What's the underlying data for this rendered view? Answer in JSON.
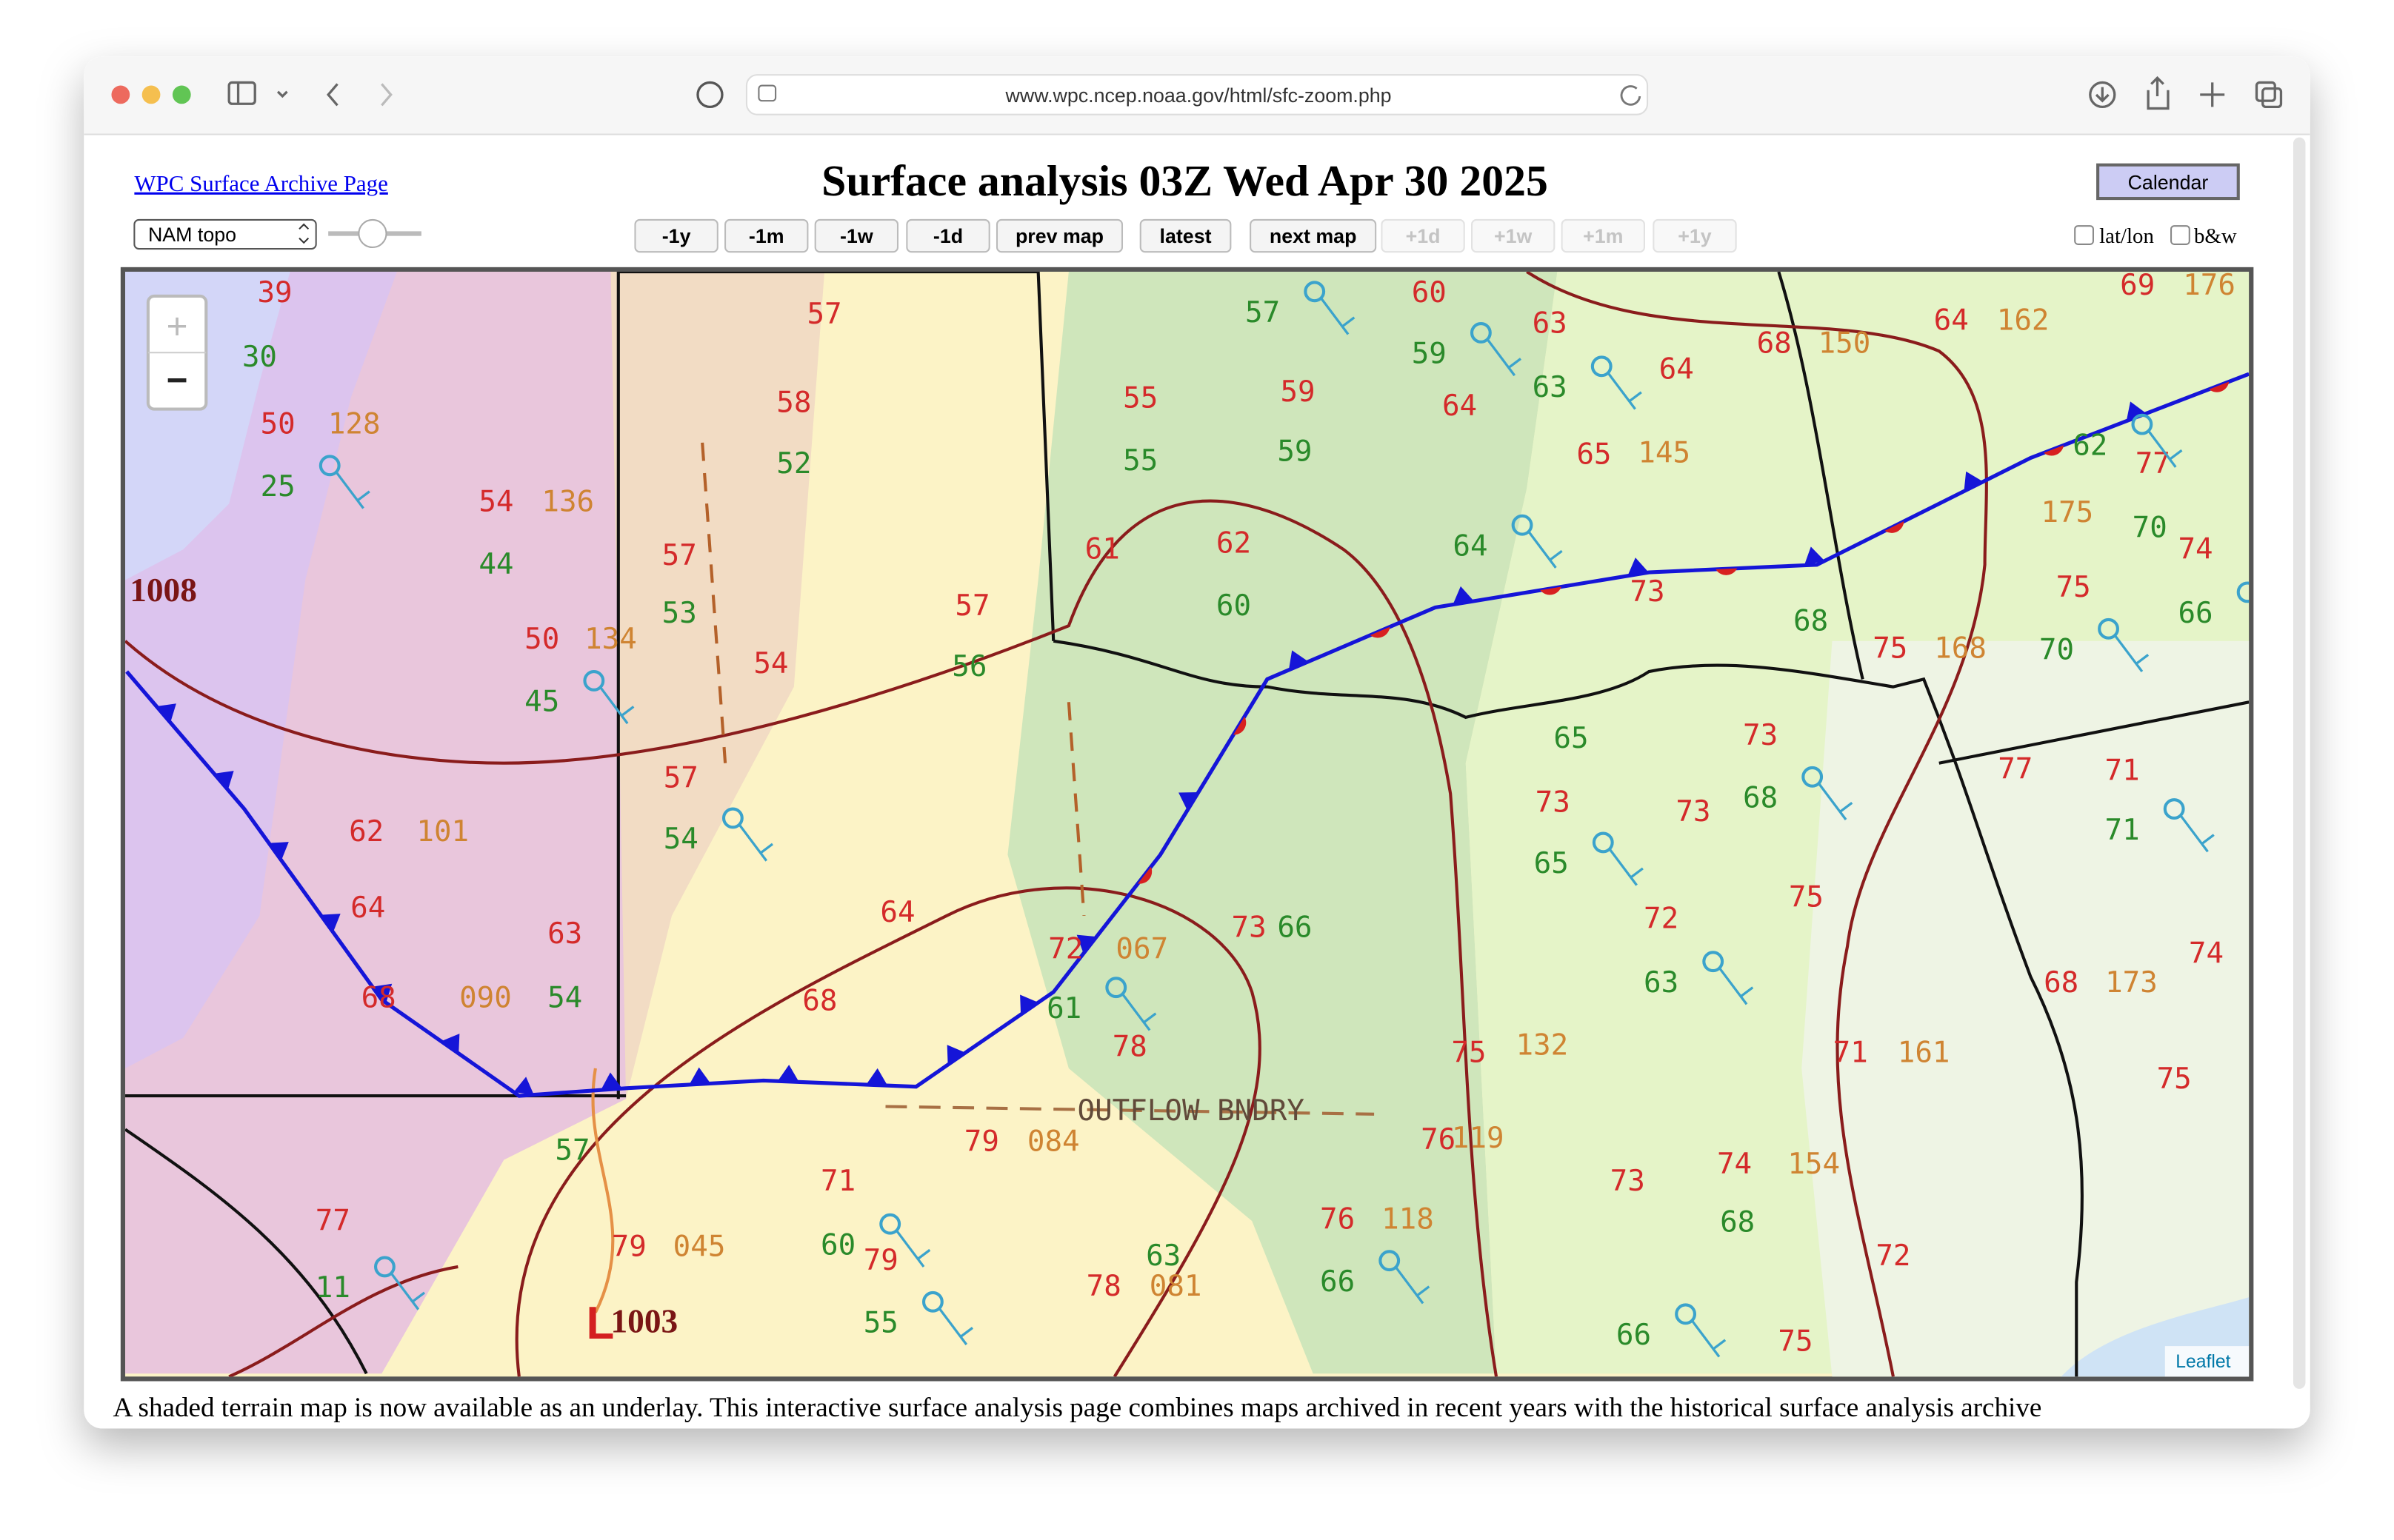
{
  "browser": {
    "url": "www.wpc.ncep.noaa.gov/html/sfc-zoom.php"
  },
  "header": {
    "archive_link": "WPC Surface Archive Page",
    "title": "Surface analysis 03Z Wed Apr 30 2025",
    "calendar": "Calendar"
  },
  "controls": {
    "underlay": "NAM topo",
    "buttons": [
      "-1y",
      "-1m",
      "-1w",
      "-1d",
      "prev map",
      "latest",
      "next map"
    ],
    "disabled_buttons": [
      "+1d",
      "+1w",
      "+1m",
      "+1y"
    ],
    "checkboxes": [
      "lat/lon",
      "b&w"
    ]
  },
  "map": {
    "zoom_in": "+",
    "zoom_out": "−",
    "attribution": "Leaflet",
    "boundary_label": "OUTFLOW BNDRY",
    "isobars": [
      "1008",
      "1003"
    ],
    "low": "L",
    "stations": [
      {
        "text": "39",
        "kind": "temp"
      },
      {
        "text": "30",
        "kind": "dew"
      },
      {
        "text": "50",
        "kind": "temp"
      },
      {
        "text": "128",
        "kind": "pres"
      },
      {
        "text": "25",
        "kind": "dew"
      },
      {
        "text": "54",
        "kind": "temp"
      },
      {
        "text": "136",
        "kind": "pres"
      },
      {
        "text": "44",
        "kind": "dew"
      },
      {
        "text": "50",
        "kind": "temp"
      },
      {
        "text": "134",
        "kind": "pres"
      },
      {
        "text": "45",
        "kind": "dew"
      },
      {
        "text": "57",
        "kind": "temp"
      },
      {
        "text": "58",
        "kind": "temp"
      },
      {
        "text": "52",
        "kind": "dew"
      },
      {
        "text": "57",
        "kind": "temp"
      },
      {
        "text": "53",
        "kind": "dew"
      },
      {
        "text": "54",
        "kind": "temp"
      },
      {
        "text": "57",
        "kind": "temp"
      },
      {
        "text": "54",
        "kind": "dew"
      },
      {
        "text": "62",
        "kind": "temp"
      },
      {
        "text": "101",
        "kind": "pres"
      },
      {
        "text": "64",
        "kind": "temp"
      },
      {
        "text": "63",
        "kind": "temp"
      },
      {
        "text": "68",
        "kind": "temp"
      },
      {
        "text": "090",
        "kind": "pres"
      },
      {
        "text": "54",
        "kind": "dew"
      },
      {
        "text": "64",
        "kind": "temp"
      },
      {
        "text": "68",
        "kind": "temp"
      },
      {
        "text": "55",
        "kind": "temp"
      },
      {
        "text": "55",
        "kind": "dew"
      },
      {
        "text": "57",
        "kind": "temp"
      },
      {
        "text": "56",
        "kind": "dew"
      },
      {
        "text": "62",
        "kind": "temp"
      },
      {
        "text": "60",
        "kind": "dew"
      },
      {
        "text": "59",
        "kind": "temp"
      },
      {
        "text": "59",
        "kind": "dew"
      },
      {
        "text": "59",
        "kind": "dew"
      },
      {
        "text": "64",
        "kind": "temp"
      },
      {
        "text": "64",
        "kind": "dew"
      },
      {
        "text": "63",
        "kind": "temp"
      },
      {
        "text": "63",
        "kind": "dew"
      },
      {
        "text": "65",
        "kind": "temp"
      },
      {
        "text": "145",
        "kind": "pres"
      },
      {
        "text": "64",
        "kind": "temp"
      },
      {
        "text": "68",
        "kind": "temp"
      },
      {
        "text": "150",
        "kind": "pres"
      },
      {
        "text": "73",
        "kind": "temp"
      },
      {
        "text": "68",
        "kind": "dew"
      },
      {
        "text": "75",
        "kind": "temp"
      },
      {
        "text": "168",
        "kind": "pres"
      },
      {
        "text": "70",
        "kind": "dew"
      },
      {
        "text": "73",
        "kind": "temp"
      },
      {
        "text": "68",
        "kind": "dew"
      },
      {
        "text": "65",
        "kind": "dew"
      },
      {
        "text": "73",
        "kind": "temp"
      },
      {
        "text": "73",
        "kind": "temp"
      },
      {
        "text": "65",
        "kind": "dew"
      },
      {
        "text": "72",
        "kind": "temp"
      },
      {
        "text": "63",
        "kind": "dew"
      },
      {
        "text": "75",
        "kind": "temp"
      },
      {
        "text": "77",
        "kind": "temp"
      },
      {
        "text": "71",
        "kind": "temp"
      },
      {
        "text": "71",
        "kind": "dew"
      },
      {
        "text": "68",
        "kind": "temp"
      },
      {
        "text": "173",
        "kind": "pres"
      },
      {
        "text": "74",
        "kind": "temp"
      },
      {
        "text": "71",
        "kind": "temp"
      },
      {
        "text": "161",
        "kind": "pres"
      },
      {
        "text": "75",
        "kind": "temp"
      },
      {
        "text": "74",
        "kind": "temp"
      },
      {
        "text": "154",
        "kind": "pres"
      },
      {
        "text": "68",
        "kind": "dew"
      },
      {
        "text": "72",
        "kind": "temp"
      },
      {
        "text": "75",
        "kind": "temp"
      },
      {
        "text": "66",
        "kind": "dew"
      },
      {
        "text": "73",
        "kind": "temp"
      },
      {
        "text": "75",
        "kind": "temp"
      },
      {
        "text": "132",
        "kind": "pres"
      },
      {
        "text": "76",
        "kind": "temp"
      },
      {
        "text": "119",
        "kind": "pres"
      },
      {
        "text": "76",
        "kind": "temp"
      },
      {
        "text": "118",
        "kind": "pres"
      },
      {
        "text": "66",
        "kind": "dew"
      },
      {
        "text": "63",
        "kind": "dew"
      },
      {
        "text": "78",
        "kind": "temp"
      },
      {
        "text": "081",
        "kind": "pres"
      },
      {
        "text": "78",
        "kind": "temp"
      },
      {
        "text": "79",
        "kind": "temp"
      },
      {
        "text": "084",
        "kind": "pres"
      },
      {
        "text": "71",
        "kind": "temp"
      },
      {
        "text": "60",
        "kind": "dew"
      },
      {
        "text": "79",
        "kind": "temp"
      },
      {
        "text": "55",
        "kind": "dew"
      },
      {
        "text": "77",
        "kind": "temp"
      },
      {
        "text": "11",
        "kind": "dew"
      },
      {
        "text": "79",
        "kind": "temp"
      },
      {
        "text": "045",
        "kind": "pres"
      },
      {
        "text": "57",
        "kind": "dew"
      },
      {
        "text": "73",
        "kind": "temp"
      },
      {
        "text": "66",
        "kind": "dew"
      },
      {
        "text": "75",
        "kind": "temp"
      },
      {
        "text": "175",
        "kind": "pres"
      },
      {
        "text": "77",
        "kind": "temp"
      },
      {
        "text": "74",
        "kind": "temp"
      },
      {
        "text": "66",
        "kind": "dew"
      },
      {
        "text": "70",
        "kind": "dew"
      },
      {
        "text": "62",
        "kind": "dew"
      },
      {
        "text": "64",
        "kind": "temp"
      },
      {
        "text": "162",
        "kind": "pres"
      },
      {
        "text": "69",
        "kind": "temp"
      },
      {
        "text": "176",
        "kind": "pres"
      },
      {
        "text": "60",
        "kind": "temp"
      },
      {
        "text": "57",
        "kind": "dew"
      },
      {
        "text": "61",
        "kind": "temp"
      },
      {
        "text": "72",
        "kind": "temp"
      },
      {
        "text": "067",
        "kind": "pres"
      },
      {
        "text": "61",
        "kind": "dew"
      }
    ],
    "colors": {
      "temp": "#d42a2a",
      "dew": "#2a8a2a",
      "pres": "#cf8432"
    }
  },
  "footer": {
    "text": "A shaded terrain map is now available as an underlay. This interactive surface analysis page combines maps archived in recent years with the historical surface analysis archive"
  }
}
